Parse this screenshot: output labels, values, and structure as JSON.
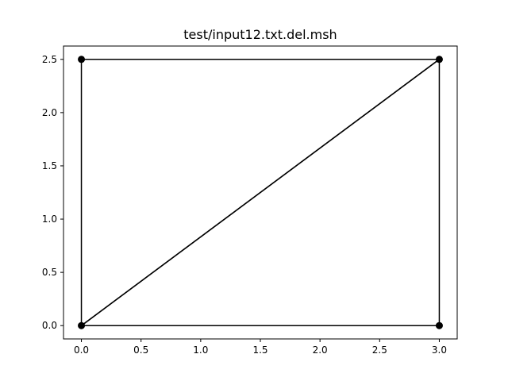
{
  "chart_data": {
    "type": "line",
    "title": "test/input12.txt.del.msh",
    "xlabel": "",
    "ylabel": "",
    "xlim": [
      -0.15,
      3.15
    ],
    "ylim": [
      -0.125,
      2.625
    ],
    "grid": false,
    "xticks": [
      0.0,
      0.5,
      1.0,
      1.5,
      2.0,
      2.5,
      3.0
    ],
    "xtick_labels": [
      "0.0",
      "0.5",
      "1.0",
      "1.5",
      "2.0",
      "2.5",
      "3.0"
    ],
    "yticks": [
      0.0,
      0.5,
      1.0,
      1.5,
      2.0,
      2.5
    ],
    "ytick_labels": [
      "0.0",
      "0.5",
      "1.0",
      "1.5",
      "2.0",
      "2.5"
    ],
    "nodes": [
      {
        "x": 0.0,
        "y": 0.0
      },
      {
        "x": 3.0,
        "y": 0.0
      },
      {
        "x": 3.0,
        "y": 2.5
      },
      {
        "x": 0.0,
        "y": 2.5
      }
    ],
    "edges": [
      [
        [
          0.0,
          0.0
        ],
        [
          3.0,
          0.0
        ]
      ],
      [
        [
          3.0,
          0.0
        ],
        [
          3.0,
          2.5
        ]
      ],
      [
        [
          3.0,
          2.5
        ],
        [
          0.0,
          0.0
        ]
      ],
      [
        [
          0.0,
          0.0
        ],
        [
          3.0,
          2.5
        ]
      ],
      [
        [
          3.0,
          2.5
        ],
        [
          0.0,
          2.5
        ]
      ],
      [
        [
          0.0,
          2.5
        ],
        [
          0.0,
          0.0
        ]
      ]
    ],
    "color": "#000000"
  }
}
